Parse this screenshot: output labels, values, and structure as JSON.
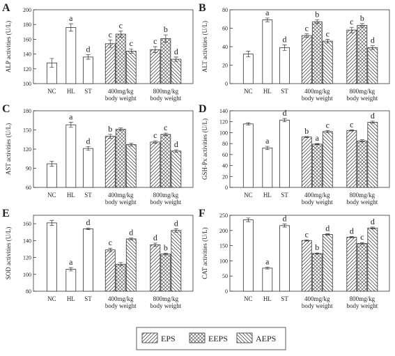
{
  "groups": [
    "NC",
    "HL",
    "ST",
    "400mg/kg\nbody weight",
    "800mg/kg\nbody weight"
  ],
  "legend": [
    {
      "name": "EPS",
      "pattern": "hatch-fwd"
    },
    {
      "name": "EEPS",
      "pattern": "crosshatch"
    },
    {
      "name": "AEPS",
      "pattern": "hatch-back"
    }
  ],
  "colors": {
    "axis": "#333333",
    "bar_edge": "#333333",
    "background": "#ffffff"
  },
  "chart_data": [
    {
      "panel": "A",
      "type": "bar",
      "ylabel": "ALP activities (U/L)",
      "ylim": [
        100,
        200
      ],
      "yticks": [
        100,
        120,
        140,
        160,
        180,
        200
      ],
      "bars": [
        {
          "group": 0,
          "series": "solid",
          "value": 128,
          "err": 6,
          "label": ""
        },
        {
          "group": 1,
          "series": "solid",
          "value": 176,
          "err": 5,
          "label": "a"
        },
        {
          "group": 2,
          "series": "solid",
          "value": 136,
          "err": 3,
          "label": "d"
        },
        {
          "group": 3,
          "series": "EPS",
          "value": 154,
          "err": 5,
          "label": "c"
        },
        {
          "group": 3,
          "series": "EEPS",
          "value": 167,
          "err": 4,
          "label": "c"
        },
        {
          "group": 3,
          "series": "AEPS",
          "value": 144,
          "err": 3,
          "label": "c"
        },
        {
          "group": 4,
          "series": "EPS",
          "value": 146,
          "err": 4,
          "label": "c"
        },
        {
          "group": 4,
          "series": "EEPS",
          "value": 161,
          "err": 5,
          "label": "b"
        },
        {
          "group": 4,
          "series": "AEPS",
          "value": 133,
          "err": 3,
          "label": "d"
        }
      ]
    },
    {
      "panel": "B",
      "type": "bar",
      "ylabel": "ALT activities (U/L)",
      "ylim": [
        0,
        80
      ],
      "yticks": [
        0,
        20,
        40,
        60,
        80
      ],
      "bars": [
        {
          "group": 0,
          "series": "solid",
          "value": 32,
          "err": 3,
          "label": ""
        },
        {
          "group": 1,
          "series": "solid",
          "value": 69,
          "err": 2,
          "label": "a"
        },
        {
          "group": 2,
          "series": "solid",
          "value": 39,
          "err": 3,
          "label": "d"
        },
        {
          "group": 3,
          "series": "EPS",
          "value": 52,
          "err": 2,
          "label": "c"
        },
        {
          "group": 3,
          "series": "EEPS",
          "value": 67,
          "err": 2,
          "label": "b"
        },
        {
          "group": 3,
          "series": "AEPS",
          "value": 46,
          "err": 2,
          "label": "c"
        },
        {
          "group": 4,
          "series": "EPS",
          "value": 58,
          "err": 3,
          "label": "c"
        },
        {
          "group": 4,
          "series": "EEPS",
          "value": 63,
          "err": 2,
          "label": "b"
        },
        {
          "group": 4,
          "series": "AEPS",
          "value": 39,
          "err": 2,
          "label": "d"
        }
      ]
    },
    {
      "panel": "C",
      "type": "bar",
      "ylabel": "AST activities (U/L)",
      "ylim": [
        60,
        180
      ],
      "yticks": [
        60,
        90,
        120,
        150,
        180
      ],
      "bars": [
        {
          "group": 0,
          "series": "solid",
          "value": 97,
          "err": 4,
          "label": ""
        },
        {
          "group": 1,
          "series": "solid",
          "value": 158,
          "err": 4,
          "label": "a"
        },
        {
          "group": 2,
          "series": "solid",
          "value": 121,
          "err": 3,
          "label": "d"
        },
        {
          "group": 3,
          "series": "EPS",
          "value": 140,
          "err": 3,
          "label": "b"
        },
        {
          "group": 3,
          "series": "EEPS",
          "value": 151,
          "err": 2,
          "label": ""
        },
        {
          "group": 3,
          "series": "AEPS",
          "value": 127,
          "err": 2,
          "label": ""
        },
        {
          "group": 4,
          "series": "EPS",
          "value": 131,
          "err": 2,
          "label": "c"
        },
        {
          "group": 4,
          "series": "EEPS",
          "value": 143,
          "err": 2,
          "label": "c"
        },
        {
          "group": 4,
          "series": "AEPS",
          "value": 117,
          "err": 2,
          "label": "d"
        }
      ]
    },
    {
      "panel": "D",
      "type": "bar",
      "ylabel": "GSH-Px activities (U/L)",
      "ylim": [
        0,
        140
      ],
      "yticks": [
        0,
        20,
        40,
        60,
        80,
        100,
        120,
        140
      ],
      "bars": [
        {
          "group": 0,
          "series": "solid",
          "value": 116,
          "err": 2,
          "label": ""
        },
        {
          "group": 1,
          "series": "solid",
          "value": 72,
          "err": 3,
          "label": "a"
        },
        {
          "group": 2,
          "series": "solid",
          "value": 123,
          "err": 3,
          "label": "d"
        },
        {
          "group": 3,
          "series": "EPS",
          "value": 92,
          "err": 1,
          "label": "b"
        },
        {
          "group": 3,
          "series": "EEPS",
          "value": 79,
          "err": 1,
          "label": "a"
        },
        {
          "group": 3,
          "series": "AEPS",
          "value": 102,
          "err": 2,
          "label": "c"
        },
        {
          "group": 4,
          "series": "EPS",
          "value": 104,
          "err": 1,
          "label": "c"
        },
        {
          "group": 4,
          "series": "EEPS",
          "value": 85,
          "err": 2,
          "label": ""
        },
        {
          "group": 4,
          "series": "AEPS",
          "value": 119,
          "err": 2,
          "label": "d"
        }
      ]
    },
    {
      "panel": "E",
      "type": "bar",
      "ylabel": "SOD activities (U/L)",
      "ylim": [
        80,
        170
      ],
      "yticks": [
        80,
        100,
        120,
        140,
        160
      ],
      "bars": [
        {
          "group": 0,
          "series": "solid",
          "value": 161,
          "err": 3,
          "label": ""
        },
        {
          "group": 1,
          "series": "solid",
          "value": 106,
          "err": 2,
          "label": "a"
        },
        {
          "group": 2,
          "series": "solid",
          "value": 154,
          "err": 1,
          "label": "d"
        },
        {
          "group": 3,
          "series": "EPS",
          "value": 129,
          "err": 2,
          "label": "c"
        },
        {
          "group": 3,
          "series": "EEPS",
          "value": 112,
          "err": 2,
          "label": ""
        },
        {
          "group": 3,
          "series": "AEPS",
          "value": 142,
          "err": 1,
          "label": "d"
        },
        {
          "group": 4,
          "series": "EPS",
          "value": 135,
          "err": 2,
          "label": "d"
        },
        {
          "group": 4,
          "series": "EEPS",
          "value": 124,
          "err": 1,
          "label": "b"
        },
        {
          "group": 4,
          "series": "AEPS",
          "value": 152,
          "err": 2,
          "label": "d"
        }
      ]
    },
    {
      "panel": "F",
      "type": "bar",
      "ylabel": "CAT activities (U/L)",
      "ylim": [
        0,
        250
      ],
      "yticks": [
        0,
        50,
        100,
        150,
        200,
        250
      ],
      "bars": [
        {
          "group": 0,
          "series": "solid",
          "value": 235,
          "err": 6,
          "label": ""
        },
        {
          "group": 1,
          "series": "solid",
          "value": 76,
          "err": 3,
          "label": "a"
        },
        {
          "group": 2,
          "series": "solid",
          "value": 216,
          "err": 5,
          "label": "d"
        },
        {
          "group": 3,
          "series": "EPS",
          "value": 167,
          "err": 2,
          "label": "c"
        },
        {
          "group": 3,
          "series": "EEPS",
          "value": 124,
          "err": 2,
          "label": "b"
        },
        {
          "group": 3,
          "series": "AEPS",
          "value": 187,
          "err": 2,
          "label": "d"
        },
        {
          "group": 4,
          "series": "EPS",
          "value": 178,
          "err": 2,
          "label": "d"
        },
        {
          "group": 4,
          "series": "EEPS",
          "value": 157,
          "err": 3,
          "label": "c"
        },
        {
          "group": 4,
          "series": "AEPS",
          "value": 208,
          "err": 3,
          "label": "d"
        }
      ]
    }
  ]
}
